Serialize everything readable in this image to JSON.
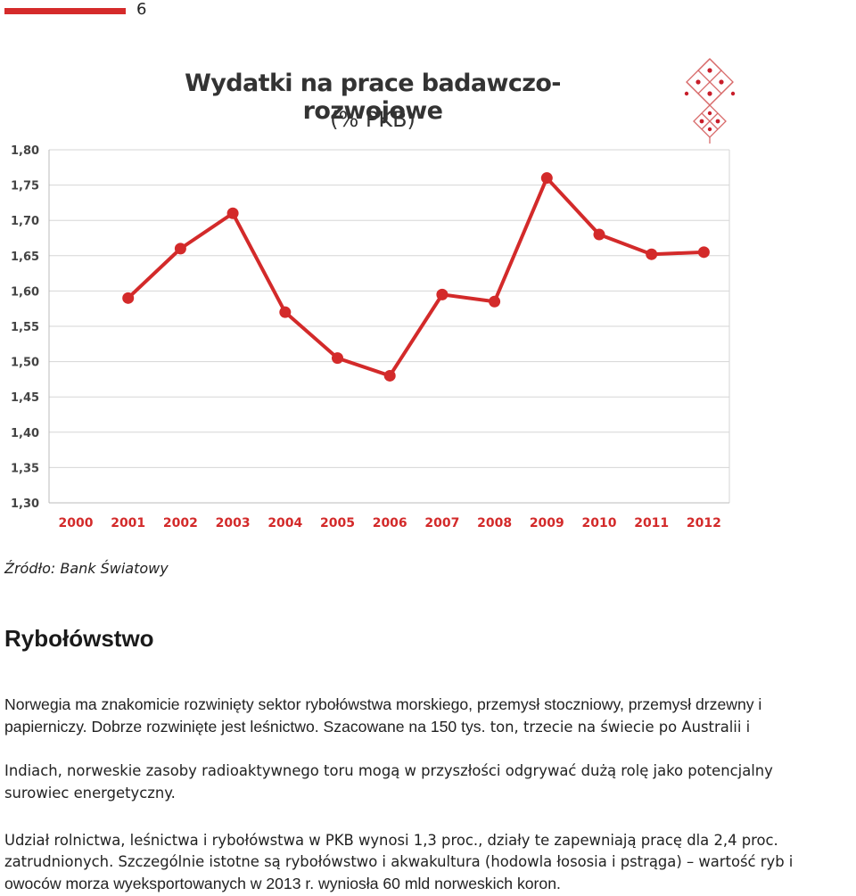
{
  "page": {
    "number": "6"
  },
  "chart_data": {
    "type": "line",
    "title": "Wydatki na prace badawczo-rozwojowe",
    "subtitle": "(% PKB)",
    "x": [
      "2000",
      "2001",
      "2002",
      "2003",
      "2004",
      "2005",
      "2006",
      "2007",
      "2008",
      "2009",
      "2010",
      "2011",
      "2012"
    ],
    "series": [
      {
        "values": [
          null,
          1.59,
          1.66,
          1.71,
          1.57,
          1.505,
          1.48,
          1.595,
          1.585,
          1.76,
          1.68,
          1.652,
          1.655
        ]
      }
    ],
    "yticks": [
      "1,30",
      "1,35",
      "1,40",
      "1,45",
      "1,50",
      "1,55",
      "1,60",
      "1,65",
      "1,70",
      "1,75",
      "1,80"
    ],
    "ylim": [
      1.3,
      1.8
    ],
    "grid": true,
    "line_color": "#d32a2a"
  },
  "source": "Źródło: Bank Światowy",
  "section": {
    "heading": "Rybołówstwo",
    "para1_line1": "Norwegia ma znakomicie rozwinięty sektor rybołówstwa morskiego, przemysł stoczniowy, przemysł drzewny i",
    "para1_line2a": "papierniczy. Dobrze rozwinięte jest leśnictwo. Szacowane na 150 tys.",
    "para1_line2b": " ton, trzecie na świecie po Australii i",
    "para1_line3": "Indiach, norweskie zasoby radioaktywnego toru mogą w przyszłości odgrywać dużą rolę jako potencjalny",
    "para1_line4": "surowiec energetyczny.",
    "para2_line1": "Udział rolnictwa, leśnictwa i rybołówstwa w PKB wynosi 1,3 proc., działy te zapewniają pracę dla 2,4 proc.",
    "para2_line2": "zatrudnionych. Szczególnie istotne są rybołówstwo i akwakultura (hodowla łososia i pstrąga) – wartość ryb i",
    "para2_line3": "owoców morza wyeksportowanych w 2013 r. wyniosła 60 mld norweskich koron."
  }
}
